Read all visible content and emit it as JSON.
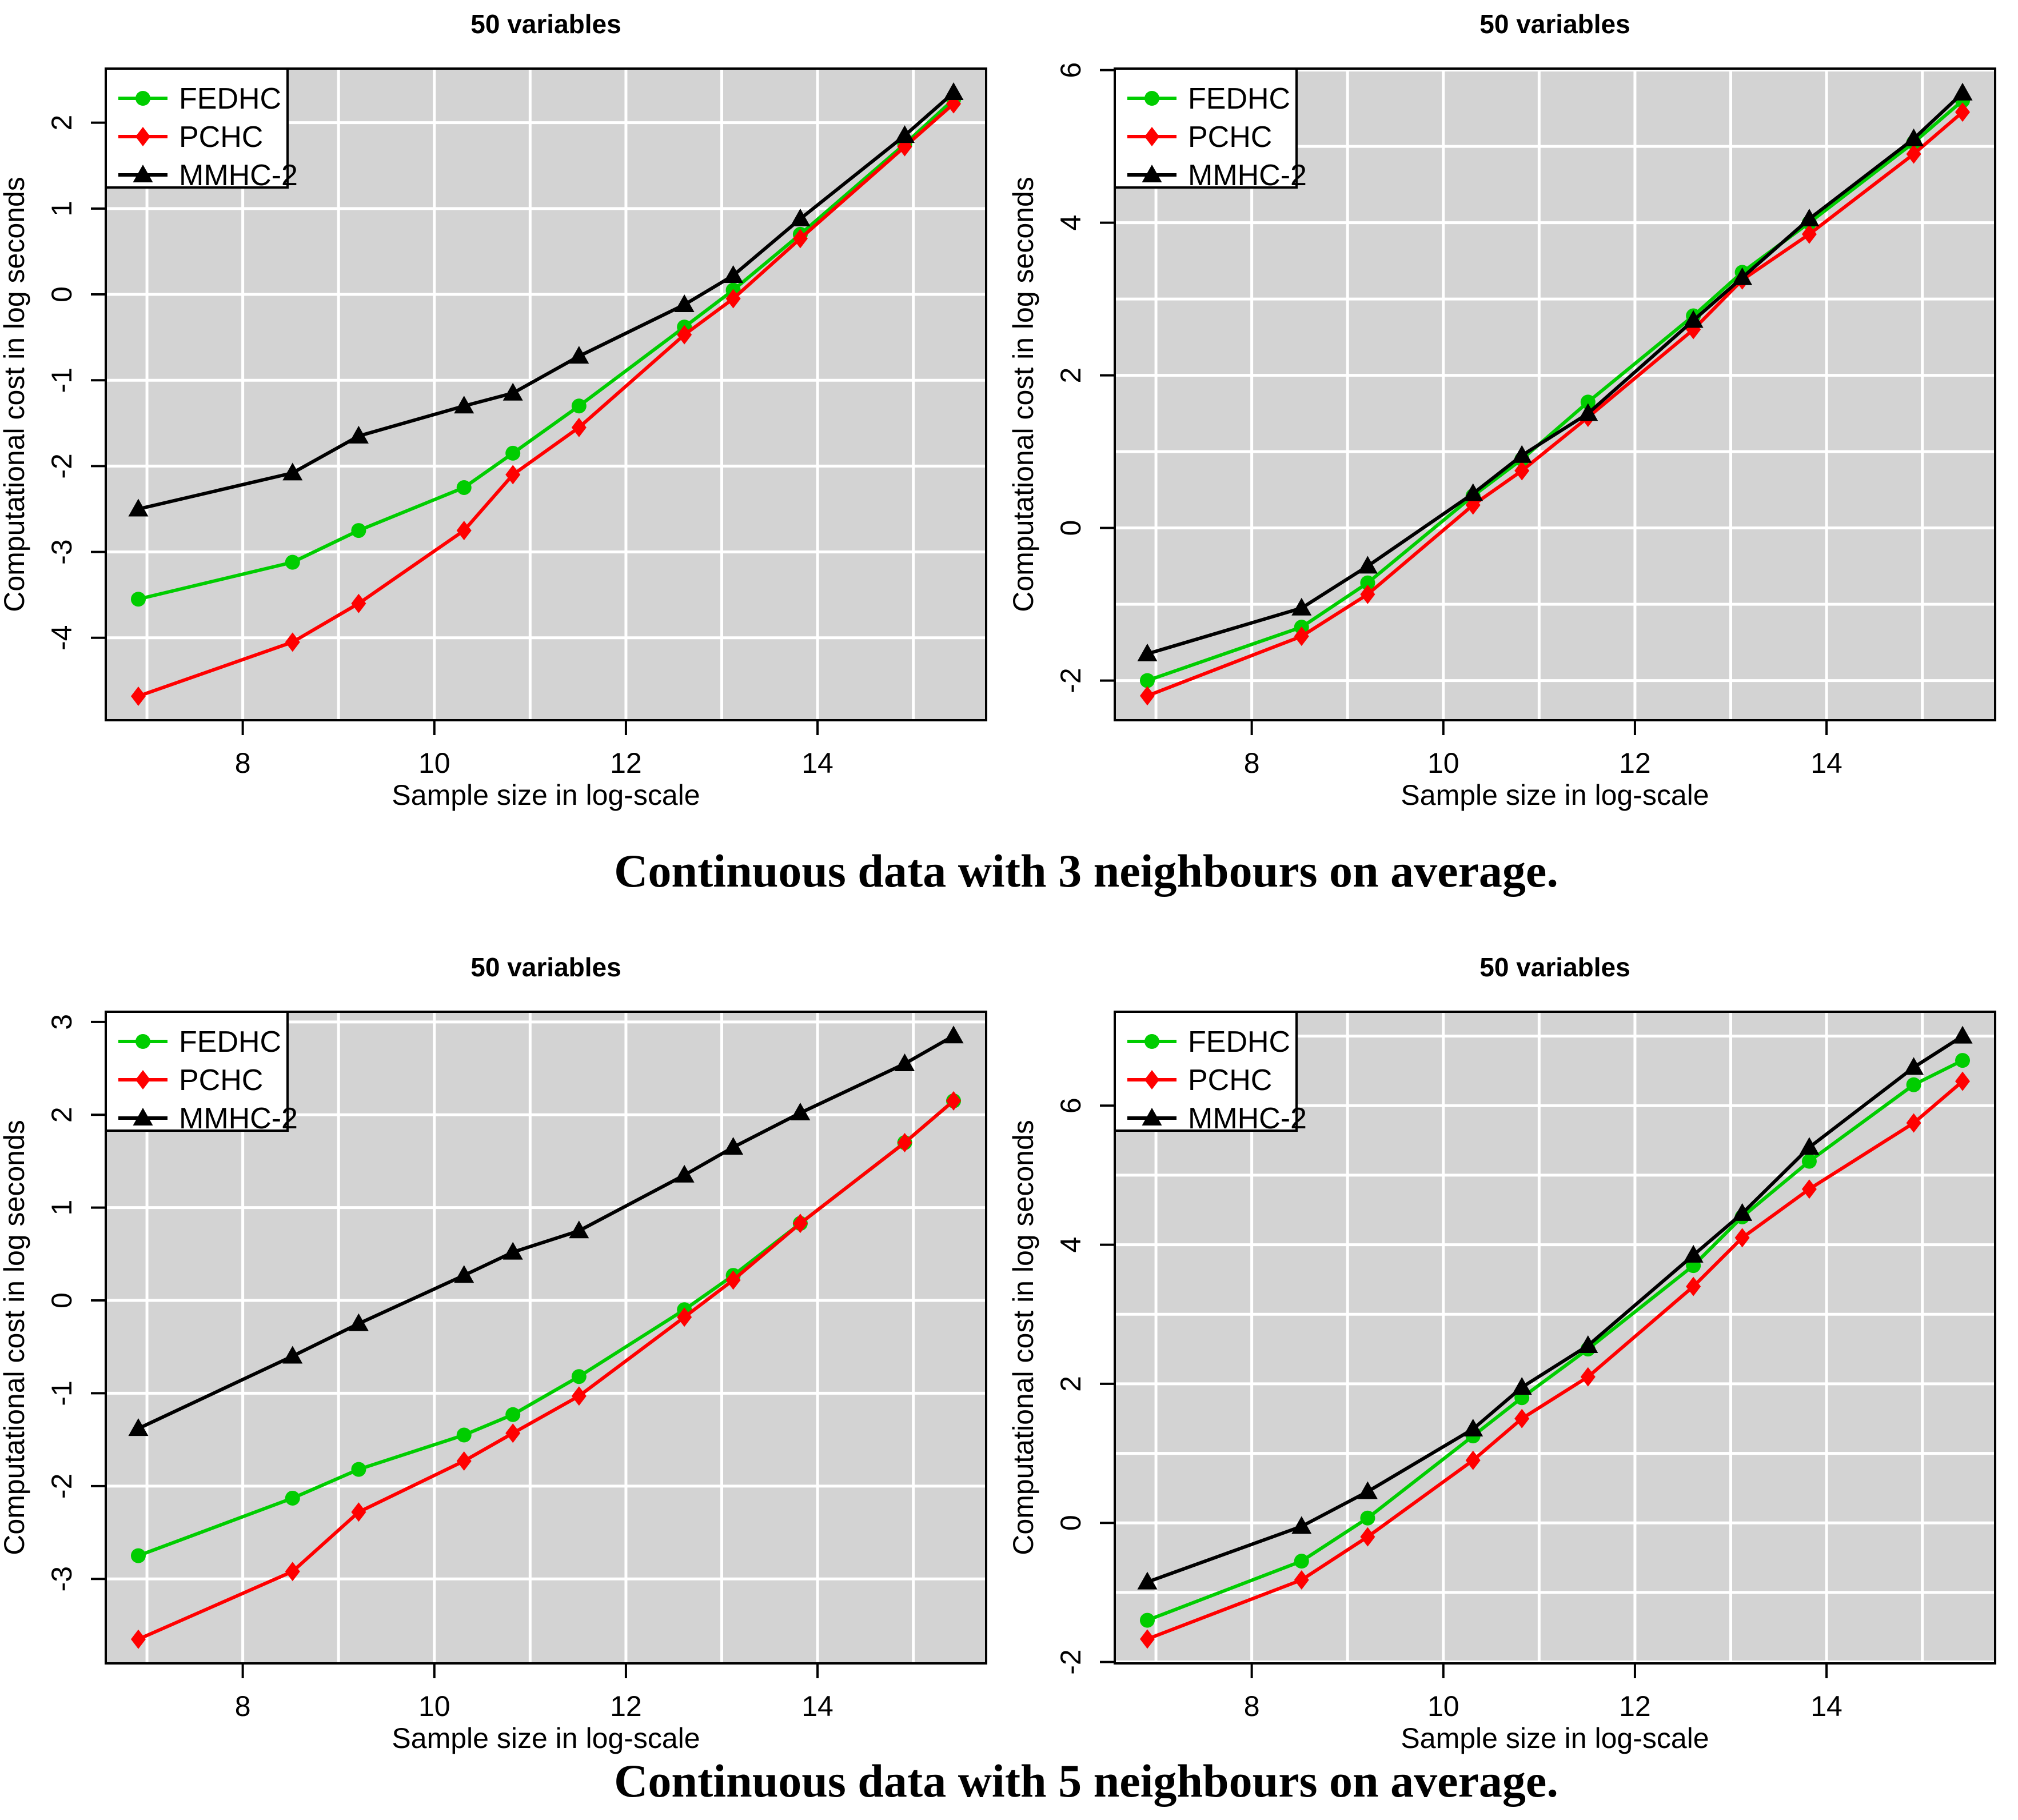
{
  "figure": {
    "captions": [
      {
        "text": "Continuous data with 3 neighbours on average."
      },
      {
        "text": "Continuous data with 5 neighbours on average."
      }
    ]
  },
  "style_colors": {
    "plot_background": "#D3D3D3",
    "grid": "#FFFFFF",
    "axis": "#000000",
    "fedhc_green": "#00CD00",
    "pchc_red": "#FF0000",
    "mmhc_black": "#000000"
  },
  "legend": {
    "position": "topleft",
    "items": [
      {
        "label": "FEDHC",
        "color": "#00CD00",
        "marker": "circle"
      },
      {
        "label": "PCHC",
        "color": "#FF0000",
        "marker": "diamond"
      },
      {
        "label": "MMHC-2",
        "color": "#000000",
        "marker": "triangle"
      }
    ]
  },
  "chart_data": [
    {
      "type": "line",
      "panel": "continuous-3-neighbours-left",
      "title": "50 variables",
      "xlabel": "Sample size in log-scale",
      "ylabel": "Computational cost in log seconds",
      "xlim": [
        6.57,
        15.76
      ],
      "ylim": [
        -4.96,
        2.63
      ],
      "xticks": [
        8,
        10,
        12,
        14
      ],
      "yticks": [
        -4,
        -3,
        -2,
        -1,
        0,
        1,
        2
      ],
      "grid_step": 1,
      "legend_position": "topleft",
      "x": [
        6.91,
        8.52,
        9.21,
        10.31,
        10.82,
        11.51,
        12.61,
        13.12,
        13.82,
        14.91,
        15.42
      ],
      "series": [
        {
          "name": "FEDHC",
          "color": "#00CD00",
          "marker": "circle",
          "values": [
            -3.55,
            -3.12,
            -2.75,
            -2.25,
            -1.85,
            -1.3,
            -0.38,
            0.05,
            0.7,
            1.75,
            2.27
          ]
        },
        {
          "name": "PCHC",
          "color": "#FF0000",
          "marker": "diamond",
          "values": [
            -4.68,
            -4.05,
            -3.6,
            -2.75,
            -2.1,
            -1.55,
            -0.47,
            -0.05,
            0.65,
            1.72,
            2.22
          ]
        },
        {
          "name": "MMHC-2",
          "color": "#000000",
          "marker": "triangle",
          "values": [
            -2.5,
            -2.08,
            -1.65,
            -1.3,
            -1.15,
            -0.72,
            -0.12,
            0.22,
            0.88,
            1.85,
            2.35
          ]
        }
      ]
    },
    {
      "type": "line",
      "panel": "continuous-3-neighbours-right",
      "title": "50 variables",
      "xlabel": "Sample size in log-scale",
      "ylabel": "Computational cost in log seconds",
      "xlim": [
        6.57,
        15.76
      ],
      "ylim": [
        -2.52,
        6.02
      ],
      "xticks": [
        8,
        10,
        12,
        14
      ],
      "yticks": [
        -2,
        0,
        2,
        4,
        6
      ],
      "grid_step": 1,
      "legend_position": "topleft",
      "x": [
        6.91,
        8.52,
        9.21,
        10.31,
        10.82,
        11.51,
        12.61,
        13.12,
        13.82,
        14.91,
        15.42
      ],
      "series": [
        {
          "name": "FEDHC",
          "color": "#00CD00",
          "marker": "circle",
          "values": [
            -2.0,
            -1.3,
            -0.72,
            0.42,
            0.9,
            1.65,
            2.78,
            3.35,
            4.0,
            5.05,
            5.6
          ]
        },
        {
          "name": "PCHC",
          "color": "#FF0000",
          "marker": "diamond",
          "values": [
            -2.2,
            -1.42,
            -0.87,
            0.3,
            0.75,
            1.45,
            2.6,
            3.25,
            3.85,
            4.9,
            5.45
          ]
        },
        {
          "name": "MMHC-2",
          "color": "#000000",
          "marker": "triangle",
          "values": [
            -1.65,
            -1.05,
            -0.5,
            0.45,
            0.95,
            1.5,
            2.72,
            3.28,
            4.05,
            5.1,
            5.7
          ]
        }
      ]
    },
    {
      "type": "line",
      "panel": "continuous-5-neighbours-left",
      "title": "50 variables",
      "xlabel": "Sample size in log-scale",
      "ylabel": "Computational cost in log seconds",
      "xlim": [
        6.57,
        15.76
      ],
      "ylim": [
        -3.91,
        3.11
      ],
      "xticks": [
        8,
        10,
        12,
        14
      ],
      "yticks": [
        -3,
        -2,
        -1,
        0,
        1,
        2,
        3
      ],
      "grid_step": 1,
      "legend_position": "topleft",
      "x": [
        6.91,
        8.52,
        9.21,
        10.31,
        10.82,
        11.51,
        12.61,
        13.12,
        13.82,
        14.91,
        15.42
      ],
      "series": [
        {
          "name": "FEDHC",
          "color": "#00CD00",
          "marker": "circle",
          "values": [
            -2.75,
            -2.13,
            -1.82,
            -1.45,
            -1.23,
            -0.82,
            -0.1,
            0.27,
            0.83,
            1.7,
            2.15
          ]
        },
        {
          "name": "PCHC",
          "color": "#FF0000",
          "marker": "diamond",
          "values": [
            -3.65,
            -2.92,
            -2.28,
            -1.73,
            -1.43,
            -1.03,
            -0.18,
            0.22,
            0.83,
            1.7,
            2.15
          ]
        },
        {
          "name": "MMHC-2",
          "color": "#000000",
          "marker": "triangle",
          "values": [
            -1.38,
            -0.6,
            -0.25,
            0.27,
            0.52,
            0.75,
            1.35,
            1.65,
            2.02,
            2.55,
            2.85
          ]
        }
      ]
    },
    {
      "type": "line",
      "panel": "continuous-5-neighbours-right",
      "title": "50 variables",
      "xlabel": "Sample size in log-scale",
      "ylabel": "Computational cost in log seconds",
      "xlim": [
        6.57,
        15.76
      ],
      "ylim": [
        -2.02,
        7.35
      ],
      "xticks": [
        8,
        10,
        12,
        14
      ],
      "yticks": [
        -2,
        0,
        2,
        4,
        6
      ],
      "grid_step": 1,
      "legend_position": "topleft",
      "x": [
        6.91,
        8.52,
        9.21,
        10.31,
        10.82,
        11.51,
        12.61,
        13.12,
        13.82,
        14.91,
        15.42
      ],
      "series": [
        {
          "name": "FEDHC",
          "color": "#00CD00",
          "marker": "circle",
          "values": [
            -1.4,
            -0.55,
            0.07,
            1.25,
            1.8,
            2.5,
            3.7,
            4.4,
            5.2,
            6.3,
            6.65
          ]
        },
        {
          "name": "PCHC",
          "color": "#FF0000",
          "marker": "diamond",
          "values": [
            -1.67,
            -0.82,
            -0.2,
            0.9,
            1.5,
            2.1,
            3.4,
            4.1,
            4.8,
            5.75,
            6.35
          ]
        },
        {
          "name": "MMHC-2",
          "color": "#000000",
          "marker": "triangle",
          "values": [
            -0.85,
            -0.05,
            0.45,
            1.35,
            1.95,
            2.55,
            3.85,
            4.45,
            5.4,
            6.55,
            7.0
          ]
        }
      ]
    }
  ]
}
